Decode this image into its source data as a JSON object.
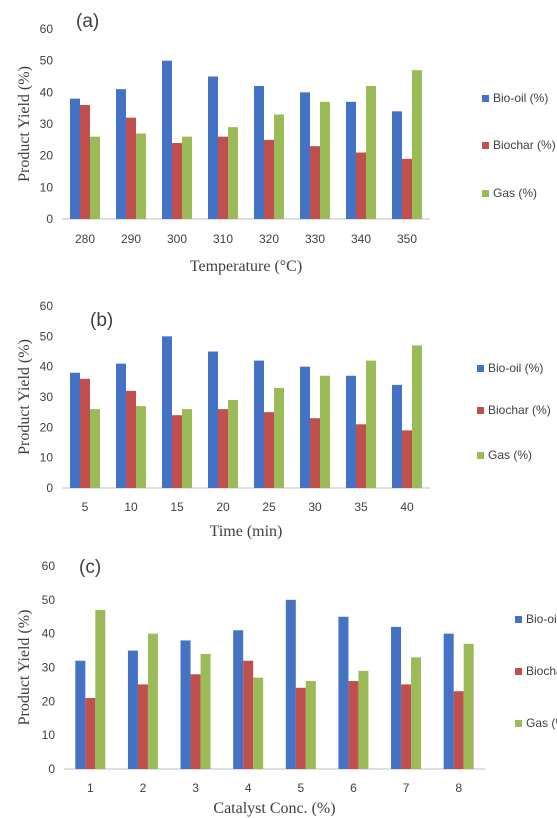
{
  "colors": {
    "bio_oil": "#4472c4",
    "biochar": "#c0504d",
    "gas": "#9bbb59"
  },
  "chart_data": [
    {
      "type": "bar",
      "panel_label": "(a)",
      "xlabel": "Temperature (°C)",
      "ylabel": "Product Yield (%)",
      "ylim": [
        0,
        60
      ],
      "yticks": [
        0,
        10,
        20,
        30,
        40,
        50,
        60
      ],
      "categories": [
        "280",
        "290",
        "300",
        "310",
        "320",
        "330",
        "340",
        "350"
      ],
      "series": [
        {
          "name": "Bio-oil (%)",
          "values": [
            38,
            41,
            50,
            45,
            42,
            40,
            37,
            34
          ]
        },
        {
          "name": "Biochar (%)",
          "values": [
            36,
            32,
            24,
            26,
            25,
            23,
            21,
            19
          ]
        },
        {
          "name": "Gas (%)",
          "values": [
            26,
            27,
            26,
            29,
            33,
            37,
            42,
            47
          ]
        }
      ],
      "legend": "right",
      "grid": false
    },
    {
      "type": "bar",
      "panel_label": "(b)",
      "xlabel": "Time (min)",
      "ylabel": "Product Yield (%)",
      "ylim": [
        0,
        60
      ],
      "yticks": [
        0,
        10,
        20,
        30,
        40,
        50,
        60
      ],
      "categories": [
        "5",
        "10",
        "15",
        "20",
        "25",
        "30",
        "35",
        "40"
      ],
      "series": [
        {
          "name": "Bio-oil (%)",
          "values": [
            38,
            41,
            50,
            45,
            42,
            40,
            37,
            34
          ]
        },
        {
          "name": "Biochar (%)",
          "values": [
            36,
            32,
            24,
            26,
            25,
            23,
            21,
            19
          ]
        },
        {
          "name": "Gas (%)",
          "values": [
            26,
            27,
            26,
            29,
            33,
            37,
            42,
            47
          ]
        }
      ],
      "legend": "right",
      "grid": false
    },
    {
      "type": "bar",
      "panel_label": "(c)",
      "xlabel": "Catalyst Conc. (%)",
      "ylabel": "Product Yield (%)",
      "ylim": [
        0,
        60
      ],
      "yticks": [
        0,
        10,
        20,
        30,
        40,
        50,
        60
      ],
      "categories": [
        "1",
        "2",
        "3",
        "4",
        "5",
        "6",
        "7",
        "8"
      ],
      "series": [
        {
          "name": "Bio-oil (%)",
          "values": [
            32,
            35,
            38,
            41,
            50,
            45,
            42,
            40
          ]
        },
        {
          "name": "Biochar (%)",
          "values": [
            21,
            25,
            28,
            32,
            24,
            26,
            25,
            23
          ]
        },
        {
          "name": "Gas (%)",
          "values": [
            47,
            40,
            34,
            27,
            26,
            29,
            33,
            37
          ]
        }
      ],
      "legend": "right",
      "grid": false
    }
  ]
}
